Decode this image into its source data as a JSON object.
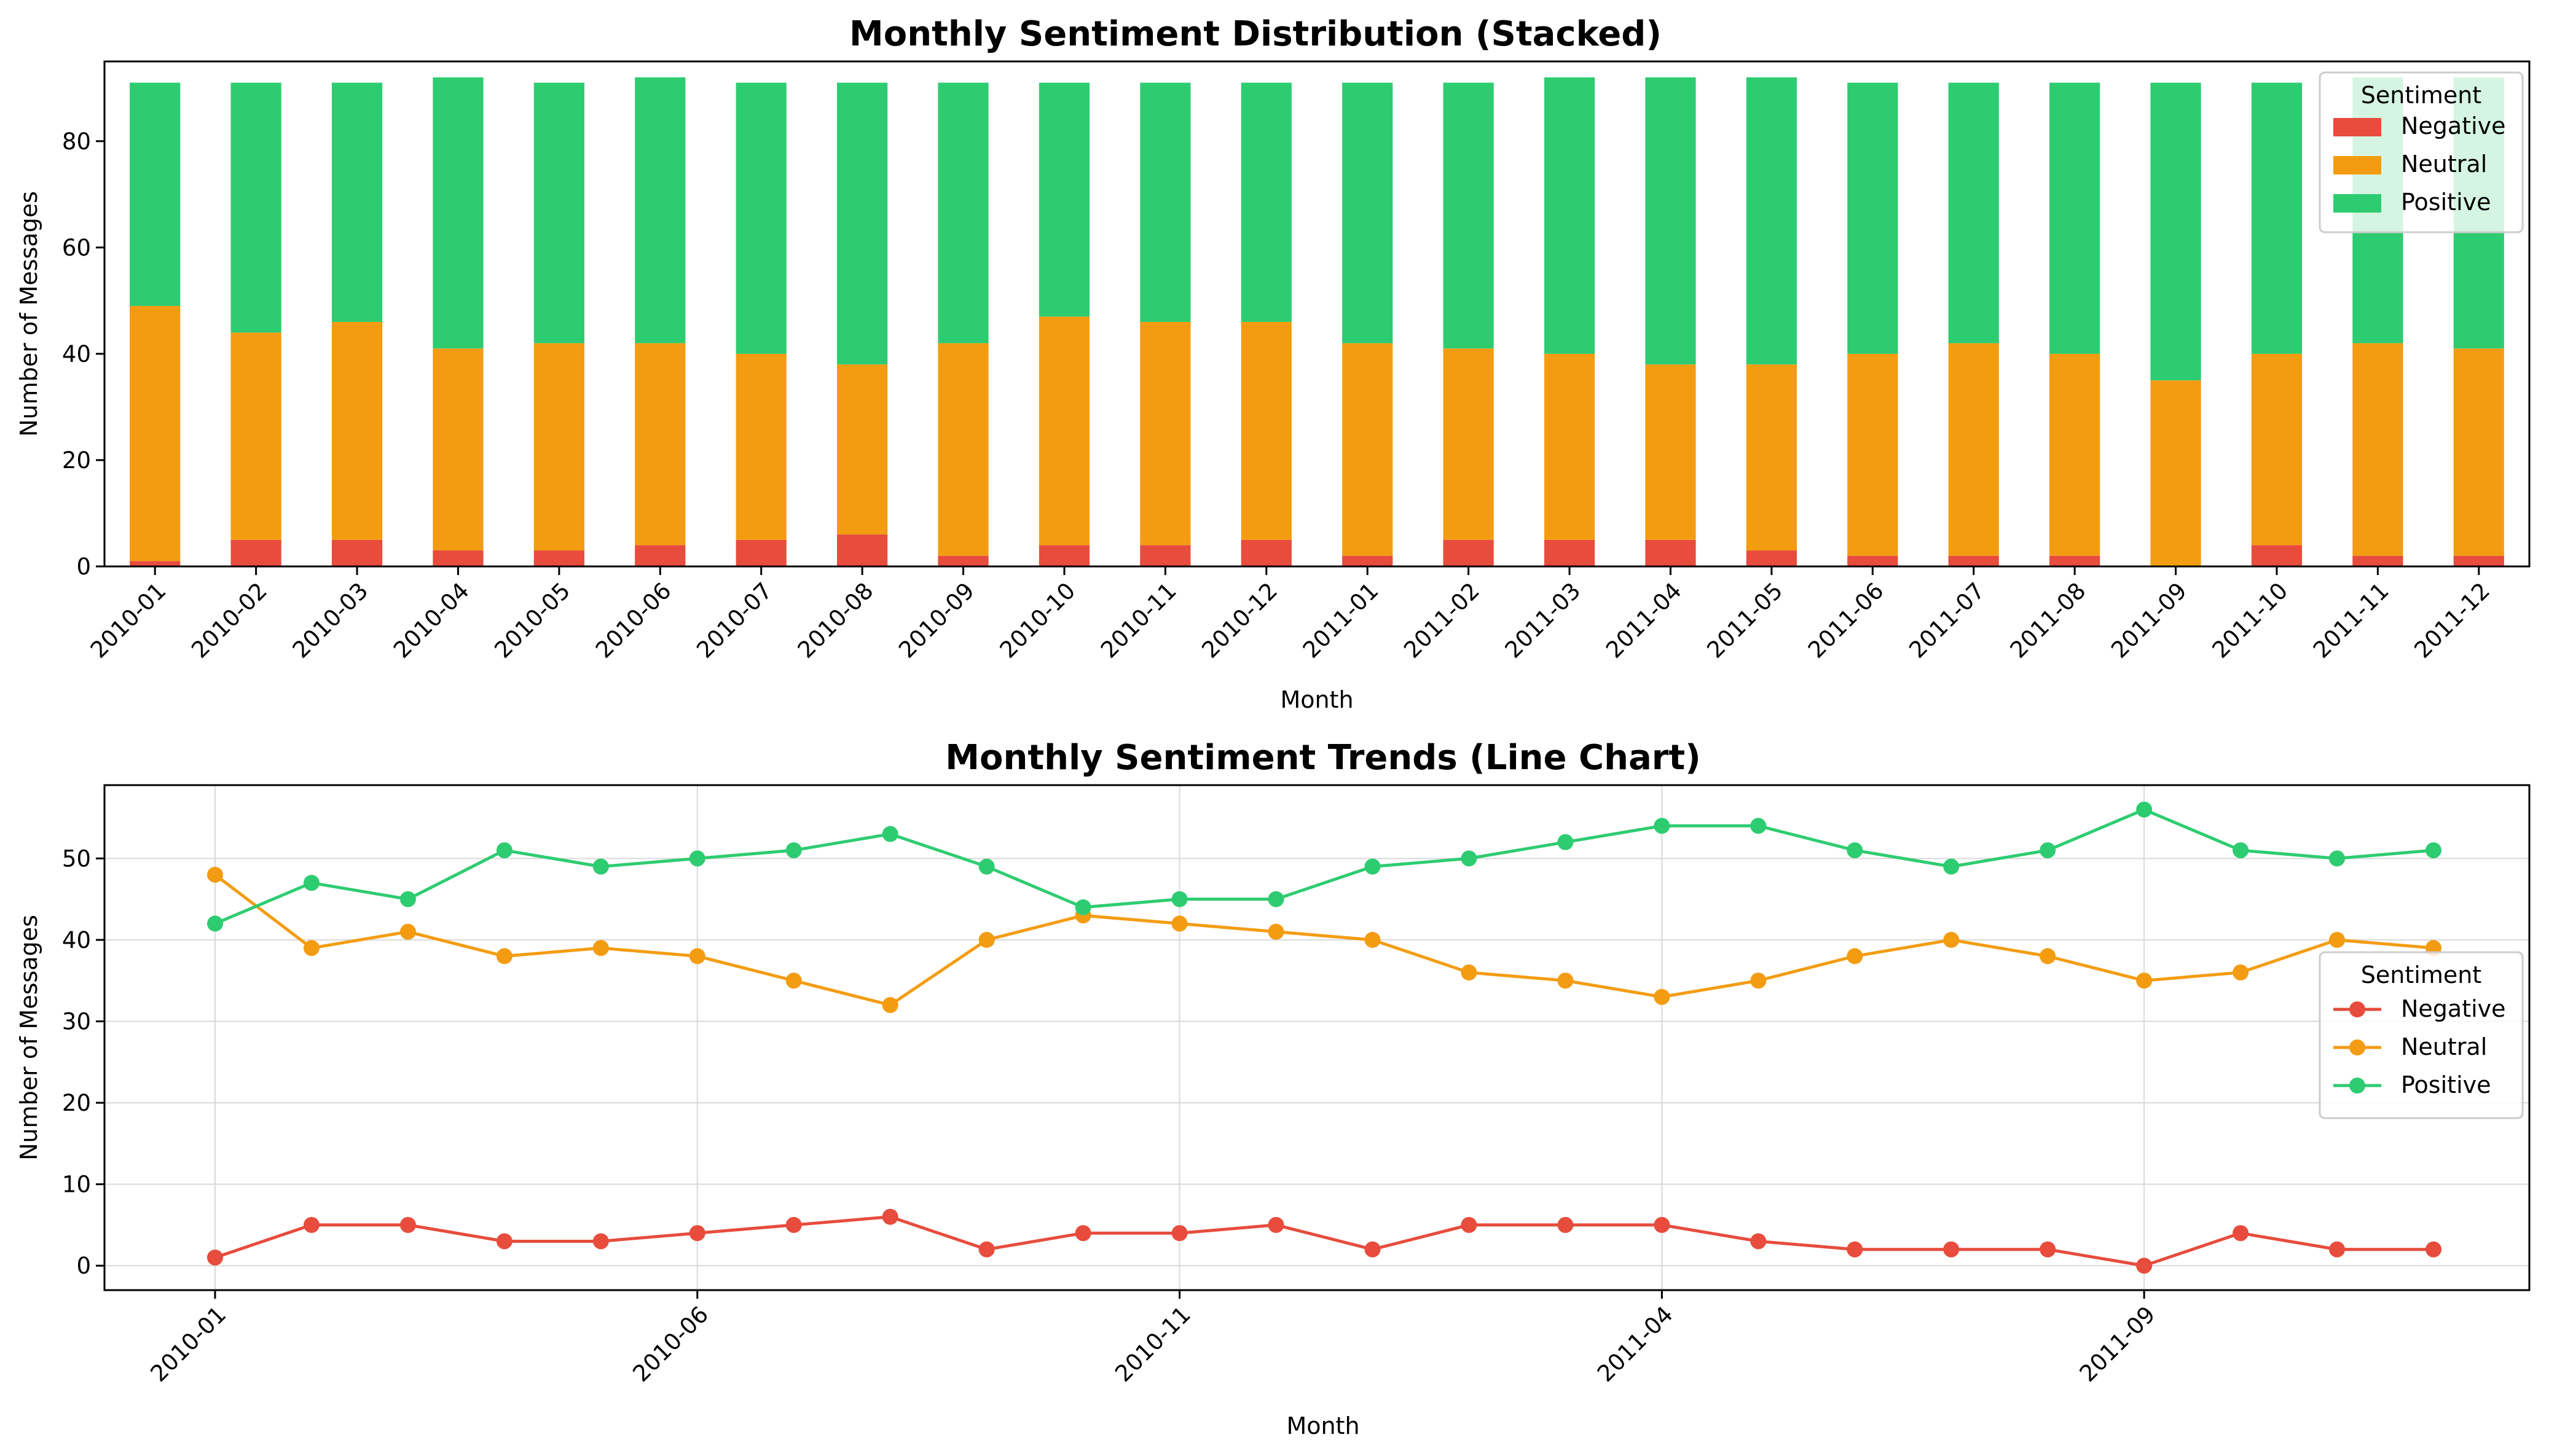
{
  "colors": {
    "Negative": "#e74c3c",
    "Neutral": "#f39c12",
    "Positive": "#2ecc71",
    "axis": "#000000",
    "grid": "#d9d9d9"
  },
  "chart_data": [
    {
      "type": "bar",
      "stacked": true,
      "title": "Monthly Sentiment Distribution (Stacked)",
      "xlabel": "Month",
      "ylabel": "Number of Messages",
      "ylim": [
        0,
        95
      ],
      "yticks": [
        0,
        20,
        40,
        60,
        80
      ],
      "grid": false,
      "legend": {
        "title": "Sentiment",
        "placement": "top-right"
      },
      "categories": [
        "2010-01",
        "2010-02",
        "2010-03",
        "2010-04",
        "2010-05",
        "2010-06",
        "2010-07",
        "2010-08",
        "2010-09",
        "2010-10",
        "2010-11",
        "2010-12",
        "2011-01",
        "2011-02",
        "2011-03",
        "2011-04",
        "2011-05",
        "2011-06",
        "2011-07",
        "2011-08",
        "2011-09",
        "2011-10",
        "2011-11",
        "2011-12"
      ],
      "series": [
        {
          "name": "Negative",
          "values": [
            1,
            5,
            5,
            3,
            3,
            4,
            5,
            6,
            2,
            4,
            4,
            5,
            2,
            5,
            5,
            5,
            3,
            2,
            2,
            2,
            0,
            4,
            2,
            2
          ]
        },
        {
          "name": "Neutral",
          "values": [
            48,
            39,
            41,
            38,
            39,
            38,
            35,
            32,
            40,
            43,
            42,
            41,
            40,
            36,
            35,
            33,
            35,
            38,
            40,
            38,
            35,
            36,
            40,
            39
          ]
        },
        {
          "name": "Positive",
          "values": [
            42,
            47,
            45,
            51,
            49,
            50,
            51,
            53,
            49,
            44,
            45,
            45,
            49,
            50,
            52,
            54,
            54,
            51,
            49,
            51,
            56,
            51,
            50,
            51
          ]
        }
      ]
    },
    {
      "type": "line",
      "title": "Monthly Sentiment Trends (Line Chart)",
      "xlabel": "Month",
      "ylabel": "Number of Messages",
      "ylim": [
        -3,
        59
      ],
      "yticks": [
        0,
        10,
        20,
        30,
        40,
        50
      ],
      "xticklabels": [
        "2010-01",
        "2010-06",
        "2010-11",
        "2011-04",
        "2011-09"
      ],
      "grid": true,
      "legend": {
        "title": "Sentiment",
        "placement": "center-right"
      },
      "x": [
        "2010-01",
        "2010-02",
        "2010-03",
        "2010-04",
        "2010-05",
        "2010-06",
        "2010-07",
        "2010-08",
        "2010-09",
        "2010-10",
        "2010-11",
        "2010-12",
        "2011-01",
        "2011-02",
        "2011-03",
        "2011-04",
        "2011-05",
        "2011-06",
        "2011-07",
        "2011-08",
        "2011-09",
        "2011-10",
        "2011-11",
        "2011-12"
      ],
      "series": [
        {
          "name": "Negative",
          "values": [
            1,
            5,
            5,
            3,
            3,
            4,
            5,
            6,
            2,
            4,
            4,
            5,
            2,
            5,
            5,
            5,
            3,
            2,
            2,
            2,
            0,
            4,
            2,
            2
          ]
        },
        {
          "name": "Neutral",
          "values": [
            48,
            39,
            41,
            38,
            39,
            38,
            35,
            32,
            40,
            43,
            42,
            41,
            40,
            36,
            35,
            33,
            35,
            38,
            40,
            38,
            35,
            36,
            40,
            39
          ]
        },
        {
          "name": "Positive",
          "values": [
            42,
            47,
            45,
            51,
            49,
            50,
            51,
            53,
            49,
            44,
            45,
            45,
            49,
            50,
            52,
            54,
            54,
            51,
            49,
            51,
            56,
            51,
            50,
            51
          ]
        }
      ]
    }
  ]
}
